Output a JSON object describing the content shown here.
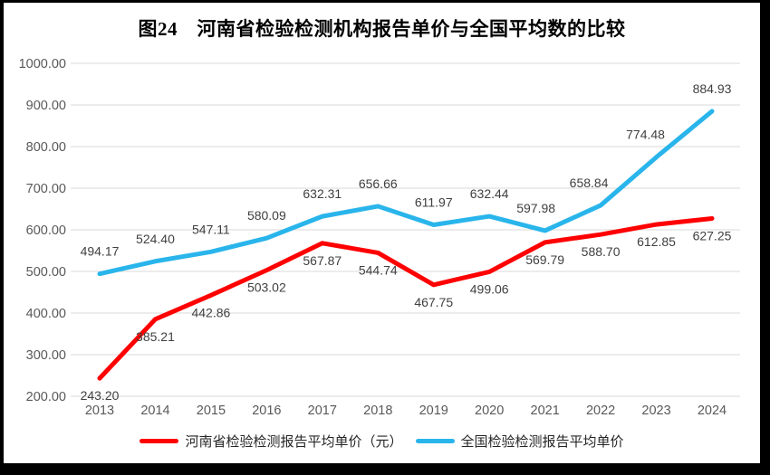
{
  "window": {
    "title": "图24　河南省检验检测机构报告单价与全国平均数的比较"
  },
  "chart_data": {
    "type": "line",
    "title": "图24　河南省检验检测机构报告单价与全国平均数的比较",
    "x": [
      2013,
      2014,
      2015,
      2016,
      2017,
      2018,
      2019,
      2020,
      2021,
      2022,
      2023,
      2024
    ],
    "xlabel": "",
    "ylabel": "",
    "ylim": [
      200,
      1000
    ],
    "ytick_step": 100,
    "ytick_decimals": 2,
    "grid": "horizontal-on",
    "legend_position": "bottom",
    "series": [
      {
        "name": "河南省检验检测报告平均单价（元）",
        "color": "#FF0000",
        "label_side": "below",
        "values": [
          243.2,
          385.21,
          442.86,
          503.02,
          567.87,
          544.74,
          467.75,
          499.06,
          569.79,
          588.7,
          612.85,
          627.25
        ]
      },
      {
        "name": "全国检验检测报告平均单价",
        "color": "#29B5EB",
        "label_side": "above",
        "values": [
          494.17,
          524.4,
          547.11,
          580.09,
          632.31,
          656.66,
          611.97,
          632.44,
          597.98,
          658.84,
          774.48,
          884.93
        ]
      }
    ],
    "colors": {
      "grid_line": "#D9D9D9",
      "axis_text": "#595959",
      "data_label_text": "#404040",
      "frame": "#000000",
      "background": "#FFFFFF"
    }
  }
}
